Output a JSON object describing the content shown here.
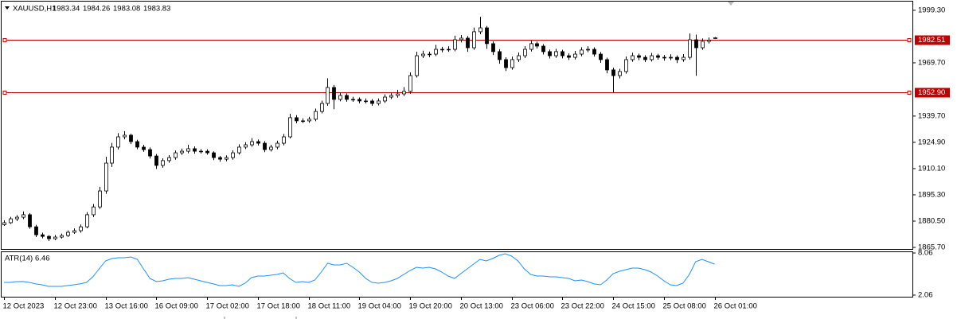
{
  "chart_data": {
    "type": "candlestick",
    "symbol": "XAUUSD,H1",
    "categories": [
      "12 Oct 2023",
      null,
      null,
      null,
      null,
      null,
      null,
      null,
      "12 Oct 23:00",
      null,
      null,
      null,
      null,
      null,
      null,
      null,
      "13 Oct 16:00",
      null,
      null,
      null,
      null,
      null,
      null,
      null,
      "16 Oct 09:00",
      null,
      null,
      null,
      null,
      null,
      null,
      null,
      "17 Oct 02:00",
      null,
      null,
      null,
      null,
      null,
      null,
      null,
      "17 Oct 18:00",
      null,
      null,
      null,
      null,
      null,
      null,
      null,
      "18 Oct 11:00",
      null,
      null,
      null,
      null,
      null,
      null,
      null,
      "19 Oct 04:00",
      null,
      null,
      null,
      null,
      null,
      null,
      null,
      "19 Oct 20:00",
      null,
      null,
      null,
      null,
      null,
      null,
      null,
      "20 Oct 13:00",
      null,
      null,
      null,
      null,
      null,
      null,
      null,
      "23 Oct 06:00",
      null,
      null,
      null,
      null,
      null,
      null,
      null,
      "23 Oct 22:00",
      null,
      null,
      null,
      null,
      null,
      null,
      null,
      "24 Oct 15:00",
      null,
      null,
      null,
      null,
      null,
      null,
      null,
      "25 Oct 08:00",
      null,
      null,
      null,
      null,
      null,
      null,
      null,
      "26 Oct 01:00"
    ],
    "ohlc": [
      [
        1878.5,
        1881.0,
        1877.8,
        1879.6
      ],
      [
        1879.6,
        1882.9,
        1878.9,
        1881.8
      ],
      [
        1881.8,
        1883.9,
        1880.5,
        1882.7
      ],
      [
        1882.7,
        1886.0,
        1881.6,
        1884.1
      ],
      [
        1884.1,
        1885.0,
        1876.2,
        1877.3
      ],
      [
        1877.3,
        1878.4,
        1871.5,
        1872.8
      ],
      [
        1872.8,
        1874.0,
        1870.8,
        1871.9
      ],
      [
        1871.9,
        1872.6,
        1869.3,
        1870.6
      ],
      [
        1870.6,
        1872.7,
        1869.8,
        1871.5
      ],
      [
        1871.5,
        1873.5,
        1870.7,
        1872.4
      ],
      [
        1872.4,
        1875.3,
        1871.6,
        1874.2
      ],
      [
        1874.2,
        1876.4,
        1873.3,
        1875.1
      ],
      [
        1875.1,
        1878.6,
        1874.0,
        1877.3
      ],
      [
        1877.3,
        1885.6,
        1876.5,
        1884.1
      ],
      [
        1884.1,
        1890.2,
        1882.8,
        1888.5
      ],
      [
        1888.5,
        1899.8,
        1887.4,
        1897.5
      ],
      [
        1897.5,
        1916.8,
        1895.9,
        1913.2
      ],
      [
        1913.2,
        1924.6,
        1911.0,
        1922.2
      ],
      [
        1922.2,
        1930.1,
        1920.9,
        1928.0
      ],
      [
        1928.0,
        1931.2,
        1926.6,
        1928.9
      ],
      [
        1928.9,
        1929.8,
        1923.9,
        1925.3
      ],
      [
        1925.3,
        1926.4,
        1921.0,
        1922.2
      ],
      [
        1922.2,
        1923.5,
        1919.6,
        1920.8
      ],
      [
        1920.8,
        1922.0,
        1915.8,
        1917.2
      ],
      [
        1917.2,
        1918.3,
        1909.9,
        1911.9
      ],
      [
        1911.9,
        1915.9,
        1910.6,
        1914.6
      ],
      [
        1914.6,
        1917.7,
        1913.4,
        1916.3
      ],
      [
        1916.3,
        1920.3,
        1915.1,
        1919.0
      ],
      [
        1919.0,
        1921.4,
        1917.8,
        1919.9
      ],
      [
        1919.9,
        1923.6,
        1918.7,
        1921.3
      ],
      [
        1921.3,
        1922.6,
        1918.5,
        1919.9
      ],
      [
        1919.9,
        1921.1,
        1918.6,
        1919.9
      ],
      [
        1919.9,
        1921.0,
        1917.9,
        1919.0
      ],
      [
        1919.0,
        1919.8,
        1914.9,
        1916.3
      ],
      [
        1916.3,
        1917.2,
        1914.0,
        1915.4
      ],
      [
        1915.4,
        1917.5,
        1914.2,
        1916.3
      ],
      [
        1916.3,
        1920.4,
        1915.1,
        1919.0
      ],
      [
        1919.0,
        1923.8,
        1918.0,
        1922.2
      ],
      [
        1922.2,
        1925.0,
        1921.1,
        1923.5
      ],
      [
        1923.5,
        1927.3,
        1922.4,
        1925.3
      ],
      [
        1925.3,
        1926.5,
        1923.1,
        1924.4
      ],
      [
        1924.4,
        1925.6,
        1919.4,
        1920.8
      ],
      [
        1920.8,
        1923.5,
        1919.7,
        1922.2
      ],
      [
        1922.2,
        1925.8,
        1921.0,
        1924.4
      ],
      [
        1924.4,
        1929.6,
        1923.2,
        1928.0
      ],
      [
        1928.0,
        1941.0,
        1927.1,
        1938.8
      ],
      [
        1938.8,
        1940.2,
        1935.6,
        1937.0
      ],
      [
        1937.0,
        1938.4,
        1935.8,
        1937.0
      ],
      [
        1937.0,
        1939.3,
        1935.9,
        1937.9
      ],
      [
        1937.9,
        1943.9,
        1936.8,
        1942.3
      ],
      [
        1942.3,
        1948.4,
        1941.2,
        1946.8
      ],
      [
        1946.8,
        1961.0,
        1945.5,
        1955.8
      ],
      [
        1955.8,
        1957.2,
        1943.6,
        1949.1
      ],
      [
        1949.1,
        1953.0,
        1948.0,
        1951.3
      ],
      [
        1951.3,
        1952.5,
        1947.8,
        1949.1
      ],
      [
        1949.1,
        1950.6,
        1947.7,
        1949.1
      ],
      [
        1949.1,
        1950.2,
        1946.9,
        1948.2
      ],
      [
        1948.2,
        1949.6,
        1946.8,
        1948.2
      ],
      [
        1948.2,
        1949.3,
        1945.5,
        1946.8
      ],
      [
        1946.8,
        1949.6,
        1945.7,
        1948.2
      ],
      [
        1948.2,
        1951.9,
        1947.1,
        1950.4
      ],
      [
        1950.4,
        1953.0,
        1949.3,
        1951.3
      ],
      [
        1951.3,
        1954.5,
        1950.1,
        1952.2
      ],
      [
        1952.2,
        1956.0,
        1951.0,
        1953.6
      ],
      [
        1953.6,
        1964.3,
        1952.3,
        1962.5
      ],
      [
        1962.5,
        1975.9,
        1961.4,
        1973.7
      ],
      [
        1973.7,
        1976.5,
        1972.4,
        1974.6
      ],
      [
        1974.6,
        1976.0,
        1972.9,
        1974.6
      ],
      [
        1974.6,
        1979.8,
        1973.5,
        1977.3
      ],
      [
        1977.3,
        1978.7,
        1975.6,
        1977.3
      ],
      [
        1977.3,
        1979.0,
        1975.9,
        1977.3
      ],
      [
        1977.3,
        1985.0,
        1976.2,
        1982.7
      ],
      [
        1982.7,
        1985.4,
        1981.2,
        1983.6
      ],
      [
        1983.6,
        1984.8,
        1975.9,
        1978.2
      ],
      [
        1978.2,
        1989.6,
        1977.0,
        1987.2
      ],
      [
        1987.2,
        1995.6,
        1985.8,
        1989.4
      ],
      [
        1989.4,
        1990.5,
        1977.6,
        1980.5
      ],
      [
        1980.5,
        1981.8,
        1974.1,
        1976.0
      ],
      [
        1976.0,
        1977.4,
        1969.2,
        1971.5
      ],
      [
        1971.5,
        1972.8,
        1965.1,
        1967.0
      ],
      [
        1967.0,
        1973.2,
        1965.8,
        1971.5
      ],
      [
        1971.5,
        1975.5,
        1970.2,
        1973.7
      ],
      [
        1973.7,
        1979.1,
        1972.4,
        1977.3
      ],
      [
        1977.3,
        1982.3,
        1976.1,
        1980.5
      ],
      [
        1980.5,
        1981.6,
        1977.8,
        1979.1
      ],
      [
        1979.1,
        1980.2,
        1974.4,
        1976.0
      ],
      [
        1976.0,
        1977.2,
        1972.1,
        1973.7
      ],
      [
        1973.7,
        1977.6,
        1972.5,
        1976.0
      ],
      [
        1976.0,
        1977.1,
        1972.2,
        1973.7
      ],
      [
        1973.7,
        1975.0,
        1971.3,
        1972.8
      ],
      [
        1972.8,
        1976.4,
        1971.6,
        1974.6
      ],
      [
        1974.6,
        1978.5,
        1973.4,
        1976.9
      ],
      [
        1976.9,
        1979.0,
        1975.7,
        1977.3
      ],
      [
        1977.3,
        1978.4,
        1973.2,
        1974.6
      ],
      [
        1974.6,
        1975.8,
        1969.7,
        1971.5
      ],
      [
        1971.5,
        1972.6,
        1963.8,
        1965.7
      ],
      [
        1965.7,
        1967.0,
        1953.1,
        1962.5
      ],
      [
        1962.5,
        1966.3,
        1960.9,
        1964.8
      ],
      [
        1964.8,
        1973.3,
        1963.6,
        1971.5
      ],
      [
        1971.5,
        1975.4,
        1970.3,
        1973.7
      ],
      [
        1973.7,
        1974.9,
        1971.2,
        1972.8
      ],
      [
        1972.8,
        1974.0,
        1970.1,
        1971.5
      ],
      [
        1971.5,
        1975.3,
        1970.4,
        1973.7
      ],
      [
        1973.7,
        1974.8,
        1971.5,
        1972.8
      ],
      [
        1972.8,
        1974.1,
        1970.9,
        1972.4
      ],
      [
        1972.4,
        1974.5,
        1971.2,
        1972.8
      ],
      [
        1972.8,
        1973.9,
        1969.6,
        1971.5
      ],
      [
        1971.5,
        1974.6,
        1970.3,
        1972.8
      ],
      [
        1972.8,
        1986.2,
        1971.6,
        1982.7
      ],
      [
        1982.7,
        1985.6,
        1962.4,
        1978.2
      ],
      [
        1978.2,
        1983.4,
        1977.0,
        1981.8
      ],
      [
        1981.8,
        1984.0,
        1980.6,
        1982.5
      ],
      [
        1983.34,
        1984.26,
        1983.08,
        1983.83
      ]
    ],
    "up_color": "#ffffff",
    "down_color": "#000000",
    "ylim": [
      1864.8,
      2004.2
    ],
    "yticks": [
      {
        "value": 1865.7,
        "label": "1865.70"
      },
      {
        "value": 1880.5,
        "label": "1880.50"
      },
      {
        "value": 1895.3,
        "label": "1895.30"
      },
      {
        "value": 1910.1,
        "label": "1910.10"
      },
      {
        "value": 1924.9,
        "label": "1924.90"
      },
      {
        "value": 1939.7,
        "label": "1939.70"
      },
      {
        "value": 1969.7,
        "label": "1969.70"
      },
      {
        "value": 1999.3,
        "label": "1999.30"
      }
    ],
    "grid": false,
    "hlines": [
      {
        "value": 1982.51,
        "color": "#c00000"
      },
      {
        "value": 1952.9,
        "label": "1952.90",
        "color": "#c00000"
      }
    ],
    "indicator": {
      "type": "line",
      "name": "ATR(14)",
      "color": "#1e90ff",
      "y2lim": [
        1.83,
        8.29
      ],
      "y2ticks": [
        2.06,
        8.06
      ],
      "values": [
        3.87,
        3.87,
        3.98,
        4.0,
        3.87,
        3.65,
        3.53,
        3.3,
        3.3,
        3.3,
        3.42,
        3.53,
        3.65,
        3.87,
        4.66,
        5.8,
        6.93,
        7.27,
        7.38,
        7.38,
        7.5,
        7.16,
        5.8,
        4.44,
        3.98,
        4.1,
        4.32,
        4.44,
        4.44,
        4.55,
        4.32,
        4.1,
        3.87,
        3.65,
        3.42,
        3.42,
        3.53,
        3.3,
        3.76,
        4.55,
        4.78,
        4.78,
        4.89,
        5.0,
        5.23,
        4.44,
        3.87,
        3.98,
        3.87,
        4.21,
        5.34,
        6.59,
        6.36,
        6.36,
        6.59,
        6.02,
        5.34,
        4.44,
        3.87,
        3.76,
        3.87,
        4.1,
        4.44,
        5.0,
        5.57,
        6.02,
        5.91,
        6.02,
        5.8,
        5.34,
        4.78,
        4.44,
        5.12,
        5.8,
        6.48,
        7.16,
        6.93,
        7.27,
        7.72,
        7.95,
        7.61,
        6.93,
        5.8,
        5.0,
        4.78,
        4.78,
        4.66,
        4.66,
        4.55,
        4.44,
        4.1,
        4.21,
        3.98,
        3.65,
        3.53,
        4.21,
        5.12,
        5.46,
        5.68,
        5.91,
        5.91,
        5.68,
        5.34,
        4.78,
        4.1,
        3.53,
        3.42,
        3.76,
        5.0,
        6.82,
        7.16,
        6.82,
        6.46
      ]
    }
  }
}
